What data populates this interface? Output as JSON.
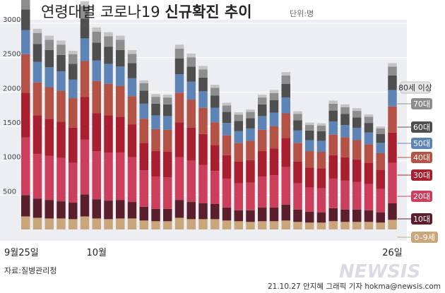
{
  "title_regular": "연령대별 코로나19 ",
  "title_bold": "신규확진 추이",
  "unit": "단위:명",
  "source": "자료:질병관리청",
  "credit": "21.10.27 안지혜 그래픽 기자 hokma@newsis.com",
  "watermark": "NEWSIS",
  "chart_data": {
    "type": "bar",
    "stacked": true,
    "title": "연령대별 코로나19 신규확진 추이",
    "ylim": [
      0,
      3300
    ],
    "yticks": [
      500,
      1000,
      1500,
      2000,
      2500,
      3000
    ],
    "grid": true,
    "x_labels": [
      {
        "index": 0,
        "text": "9월25일"
      },
      {
        "index": 6,
        "text": "10월"
      },
      {
        "index": 31,
        "text": "26일"
      }
    ],
    "legend_position": "right",
    "series": [
      {
        "name": "0–9세",
        "color": "#c9a77a",
        "values": [
          190,
          170,
          160,
          160,
          150,
          190,
          160,
          150,
          160,
          160,
          130,
          120,
          120,
          170,
          150,
          150,
          150,
          130,
          120,
          110,
          120,
          120,
          130,
          110,
          100,
          100,
          120,
          110,
          110,
          110,
          100,
          140
        ]
      },
      {
        "name": "10대",
        "color": "#5a1e2c",
        "values": [
          310,
          280,
          270,
          250,
          240,
          320,
          280,
          270,
          270,
          240,
          200,
          180,
          180,
          260,
          250,
          230,
          220,
          190,
          160,
          170,
          200,
          200,
          230,
          180,
          160,
          150,
          190,
          180,
          180,
          170,
          150,
          240
        ]
      },
      {
        "name": "20대",
        "color": "#cc3f5c",
        "values": [
          840,
          650,
          640,
          630,
          580,
          800,
          700,
          700,
          690,
          650,
          530,
          470,
          460,
          620,
          600,
          560,
          480,
          420,
          390,
          400,
          450,
          470,
          550,
          380,
          350,
          350,
          430,
          420,
          400,
          380,
          340,
          590
        ]
      },
      {
        "name": "30대",
        "color": "#a8202f",
        "values": [
          650,
          560,
          540,
          530,
          510,
          620,
          550,
          540,
          520,
          480,
          400,
          370,
          370,
          510,
          480,
          450,
          380,
          340,
          320,
          330,
          370,
          390,
          420,
          320,
          290,
          290,
          340,
          340,
          330,
          310,
          280,
          440
        ]
      },
      {
        "name": "40대",
        "color": "#b45245",
        "values": [
          560,
          480,
          460,
          450,
          430,
          520,
          470,
          460,
          450,
          410,
          350,
          320,
          320,
          430,
          410,
          380,
          330,
          290,
          270,
          280,
          310,
          320,
          360,
          270,
          240,
          240,
          300,
          290,
          280,
          270,
          240,
          380
        ]
      },
      {
        "name": "50대",
        "color": "#5e84b6",
        "values": [
          350,
          300,
          290,
          280,
          270,
          330,
          300,
          290,
          280,
          260,
          220,
          200,
          200,
          270,
          260,
          240,
          210,
          180,
          170,
          180,
          200,
          200,
          230,
          180,
          160,
          160,
          190,
          180,
          180,
          170,
          150,
          240
        ]
      },
      {
        "name": "60대",
        "color": "#4f4f4f",
        "values": [
          300,
          260,
          250,
          240,
          230,
          290,
          260,
          250,
          240,
          220,
          190,
          170,
          170,
          230,
          220,
          200,
          180,
          160,
          150,
          150,
          170,
          180,
          200,
          150,
          140,
          140,
          160,
          160,
          150,
          140,
          130,
          210
        ]
      },
      {
        "name": "70대",
        "color": "#8d8d8d",
        "values": [
          185,
          160,
          150,
          150,
          140,
          180,
          160,
          150,
          150,
          135,
          110,
          100,
          100,
          140,
          135,
          120,
          110,
          95,
          90,
          90,
          100,
          105,
          120,
          90,
          80,
          80,
          100,
          100,
          95,
          90,
          80,
          130
        ]
      },
      {
        "name": "80세 이상",
        "color": "#c4c4c4",
        "values": [
          75,
          60,
          60,
          60,
          50,
          70,
          60,
          60,
          60,
          55,
          40,
          40,
          40,
          60,
          55,
          50,
          45,
          40,
          35,
          35,
          40,
          45,
          50,
          40,
          35,
          35,
          45,
          40,
          40,
          35,
          30,
          50
        ]
      }
    ]
  }
}
